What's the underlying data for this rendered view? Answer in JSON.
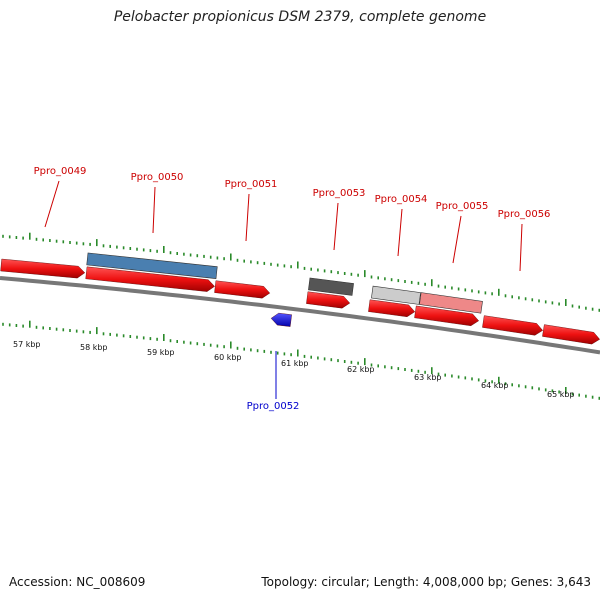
{
  "title": "Pelobacter propionicus DSM 2379, complete genome",
  "footer": {
    "accession": "Accession: NC_008609",
    "summary": "Topology: circular; Length: 4,008,000 bp; Genes: 3,643"
  },
  "colors": {
    "cds": "#ee1111",
    "cds_minus": "#1111ee",
    "label_plus": "#cc0000",
    "label_minus": "#0000cc",
    "tick": "#2a8a2a",
    "backbone": "#777777",
    "feature_blue": "#4a7fb0",
    "feature_dark": "#555555",
    "feature_light": "#cccccc",
    "feature_pink": "#ee8888"
  },
  "kbp_labels": [
    "57 kbp",
    "58 kbp",
    "59 kbp",
    "60 kbp",
    "61 kbp",
    "62 kbp",
    "63 kbp",
    "64 kbp",
    "65 kbp"
  ],
  "genes": [
    {
      "name": "Ppro_0049",
      "strand": "plus"
    },
    {
      "name": "Ppro_0050",
      "strand": "plus"
    },
    {
      "name": "Ppro_0051",
      "strand": "plus"
    },
    {
      "name": "Ppro_0052",
      "strand": "minus"
    },
    {
      "name": "Ppro_0053",
      "strand": "plus"
    },
    {
      "name": "Ppro_0054",
      "strand": "plus"
    },
    {
      "name": "Ppro_0055",
      "strand": "plus"
    },
    {
      "name": "Ppro_0056",
      "strand": "plus"
    }
  ]
}
